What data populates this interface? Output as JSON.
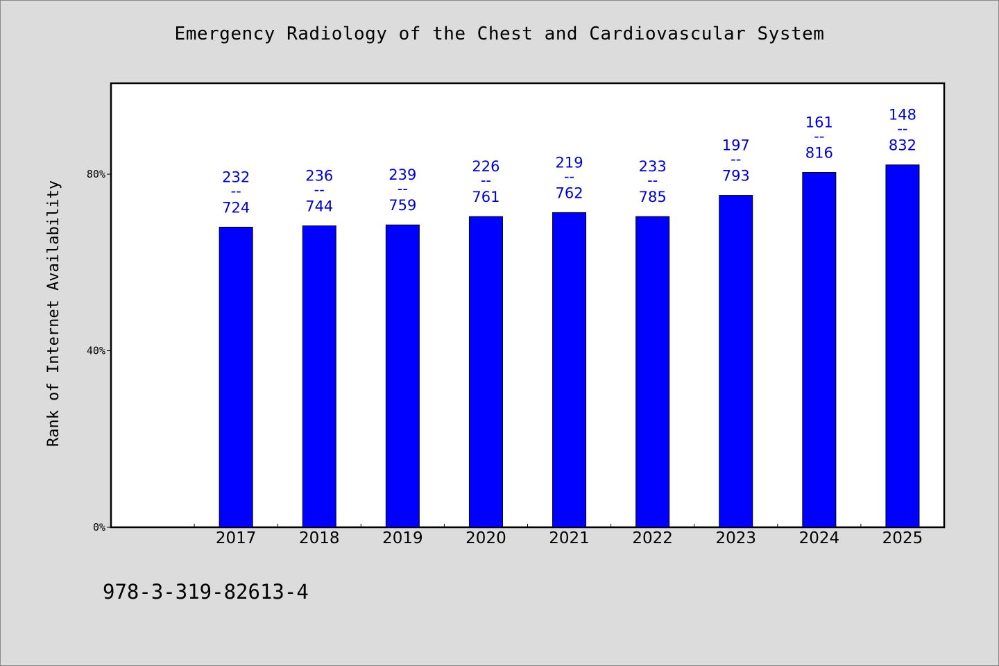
{
  "chart_data": {
    "type": "bar",
    "title": "Emergency Radiology of the Chest and Cardiovascular System",
    "ylabel": "Rank of Internet Availability",
    "xlabel": "",
    "categories": [
      "2017",
      "2018",
      "2019",
      "2020",
      "2021",
      "2022",
      "2023",
      "2024",
      "2025"
    ],
    "values": [
      68.0,
      68.3,
      68.5,
      70.4,
      71.3,
      70.4,
      75.2,
      80.4,
      82.1
    ],
    "data_labels": [
      {
        "top": "232",
        "mid": "--",
        "bottom": "724"
      },
      {
        "top": "236",
        "mid": "--",
        "bottom": "744"
      },
      {
        "top": "239",
        "mid": "--",
        "bottom": "759"
      },
      {
        "top": "226",
        "mid": "--",
        "bottom": "761"
      },
      {
        "top": "219",
        "mid": "--",
        "bottom": "762"
      },
      {
        "top": "233",
        "mid": "--",
        "bottom": "785"
      },
      {
        "top": "197",
        "mid": "--",
        "bottom": "793"
      },
      {
        "top": "161",
        "mid": "--",
        "bottom": "816"
      },
      {
        "top": "148",
        "mid": "--",
        "bottom": "832"
      }
    ],
    "y_ticks": [
      {
        "value": 0,
        "label": "0%"
      },
      {
        "value": 40,
        "label": "40%"
      },
      {
        "value": 80,
        "label": "80%"
      }
    ],
    "ylim": [
      0,
      100.6
    ],
    "grid": false,
    "legend": "none",
    "bar_color": "#0000ff",
    "label_color": "#0000cc"
  },
  "footer": {
    "isbn": "978-3-319-82613-4"
  }
}
